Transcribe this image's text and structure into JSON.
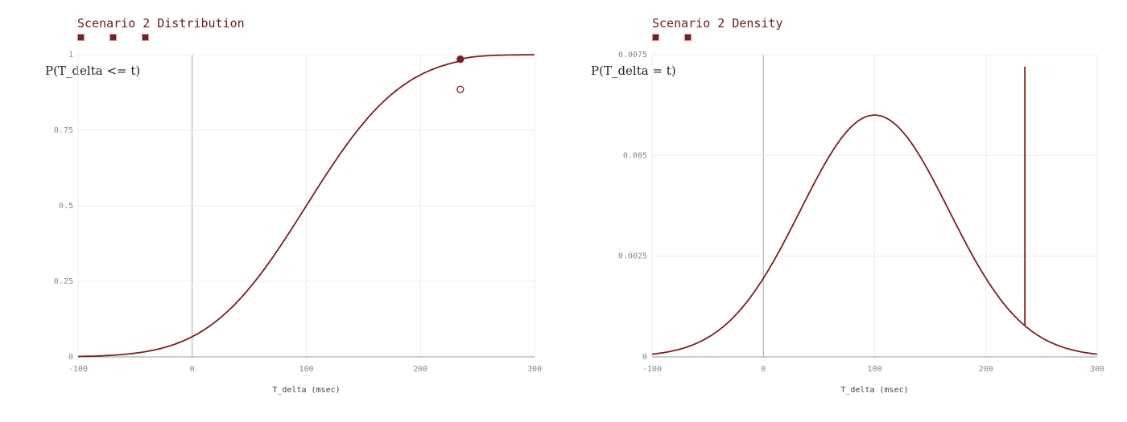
{
  "colors": {
    "series": "#7a1f1f",
    "grid": "#ececec",
    "axis": "#9a9a9a",
    "zero_line": "#a8a8a8"
  },
  "chart_data": [
    {
      "type": "line",
      "title": "Scenario 2 Distribution",
      "legend_items": 3,
      "ylabel": "P(T_delta <= t)",
      "xlabel": "T_delta (msec)",
      "xlim": [
        -100,
        300
      ],
      "ylim": [
        0,
        1
      ],
      "xticks": [
        "-100",
        "0",
        "100",
        "200",
        "300"
      ],
      "yticks": [
        "0",
        "0.25",
        "0.5",
        "0.75",
        "1"
      ],
      "grid": true,
      "distribution": "normal",
      "mean": 100,
      "sd": 66.7,
      "jump_at": 235,
      "value_before_jump": 0.885,
      "value_after_jump": 0.985,
      "end_value": 1.0
    },
    {
      "type": "line",
      "title": "Scenario 2 Density",
      "legend_items": 2,
      "ylabel": "P(T_delta = t)",
      "xlabel": "T_delta (msec)",
      "xlim": [
        -100,
        300
      ],
      "ylim": [
        0,
        0.0075
      ],
      "xticks": [
        "-100",
        "0",
        "100",
        "200",
        "300"
      ],
      "yticks": [
        "0",
        "0.0025",
        "0.005",
        "0.0075"
      ],
      "grid": true,
      "distribution": "normal",
      "mean": 100,
      "peak_density": 0.006,
      "sd": 66.7,
      "spike_at": 235,
      "spike_height": 0.0072
    }
  ]
}
